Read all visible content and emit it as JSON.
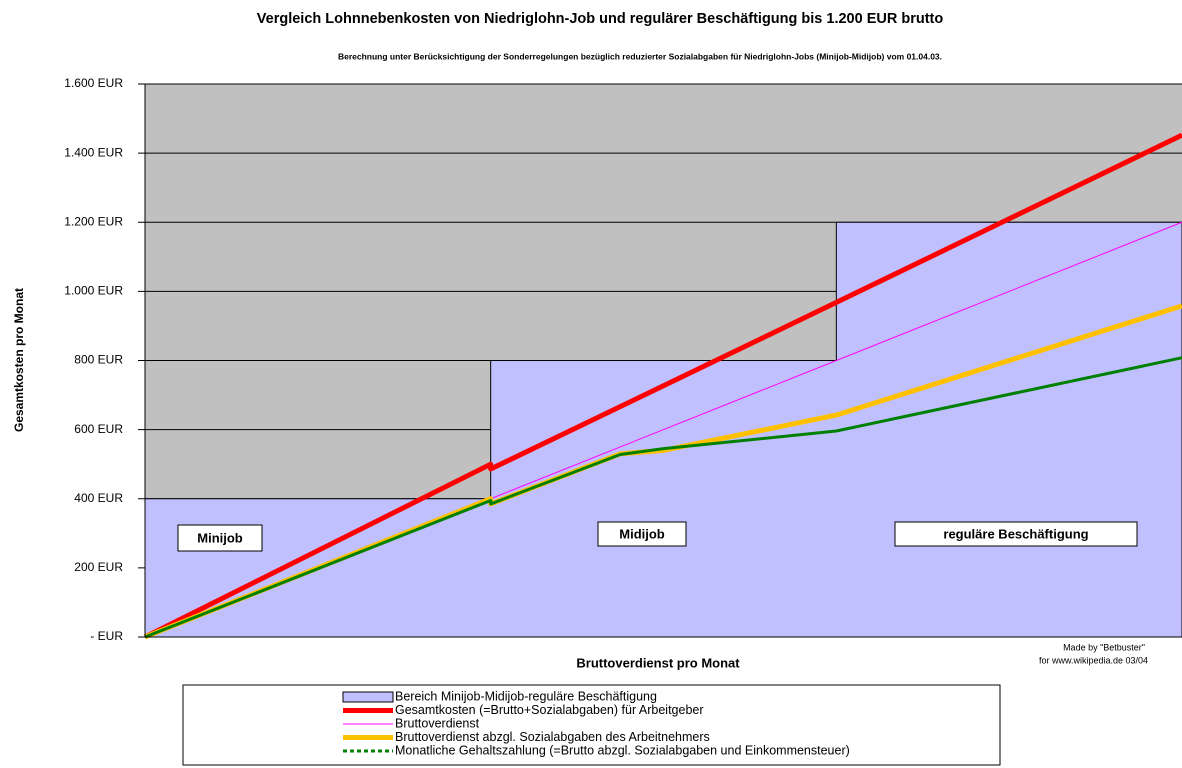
{
  "chart_data": {
    "type": "line",
    "title": "Vergleich Lohnnebenkosten von Niedriglohn-Job und regulärer Beschäftigung bis 1.200 EUR brutto",
    "subtitle": "Berechnung unter Berücksichtigung der Sonderregelungen bezüglich reduzierter Sozialabgaben für Niedriglohn-Jobs (Minijob-Midijob) vom 01.04.03.",
    "x_label": "Bruttoverdienst pro Monat",
    "y_label": "Gesamtkosten pro Monat",
    "annotations": [
      "Minijob",
      "Midijob",
      "reguläre Beschäftigung",
      "Made by \"Betbuster\"",
      "for  www.wikipedia.de  03/04"
    ],
    "xlim": [
      0,
      1200
    ],
    "ylim": [
      0,
      1600
    ],
    "yticks": [
      {
        "value": 0,
        "label": "- EUR"
      },
      {
        "value": 200,
        "label": "200 EUR"
      },
      {
        "value": 400,
        "label": "400 EUR"
      },
      {
        "value": 600,
        "label": "600 EUR"
      },
      {
        "value": 800,
        "label": "800 EUR"
      },
      {
        "value": 1000,
        "label": "1.000 EUR"
      },
      {
        "value": 1200,
        "label": "1.200 EUR"
      },
      {
        "value": 1400,
        "label": "1.400 EUR"
      },
      {
        "value": 1600,
        "label": "1.600 EUR"
      }
    ],
    "grid": true,
    "series": [
      {
        "name": "Bereich Minijob-Midijob-reguläre Beschäftigung",
        "color": "#c0c0ff",
        "kind": "area",
        "x": [
          0,
          400,
          400,
          800,
          800,
          1200
        ],
        "values": [
          400,
          400,
          800,
          800,
          1200,
          1200
        ]
      },
      {
        "name": "Gesamtkosten (=Brutto+Sozialabgaben) für Arbeitgeber",
        "color": "#ff0000",
        "x": [
          0,
          400,
          400,
          800,
          1200
        ],
        "values": [
          0,
          500,
          486,
          968,
          1452
        ]
      },
      {
        "name": "Bruttoverdienst",
        "color": "#ff00ff",
        "x": [
          0,
          1200
        ],
        "values": [
          0,
          1200
        ]
      },
      {
        "name": "Bruttoverdienst abzgl. Sozialabgaben des Arbeitnehmers",
        "color": "#ffc000",
        "x": [
          0,
          400,
          400,
          550,
          600,
          800,
          1200
        ],
        "values": [
          0,
          400,
          385,
          530,
          540,
          642,
          958
        ]
      },
      {
        "name": "Monatliche Gehaltszahlung (=Brutto abzgl. Sozialabgaben und Einkommensteuer)",
        "color": "#008000",
        "x": [
          0,
          400,
          400,
          550,
          600,
          800,
          1200
        ],
        "values": [
          0,
          395,
          385,
          528,
          545,
          596,
          808
        ]
      }
    ]
  }
}
